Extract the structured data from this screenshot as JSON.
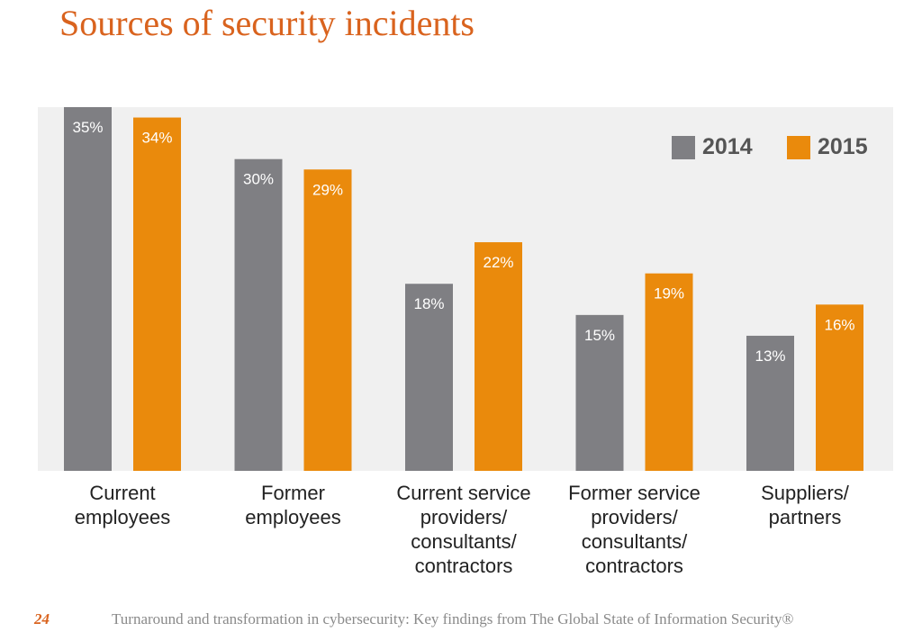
{
  "title": "Sources of security incidents",
  "chart_data": {
    "type": "bar",
    "categories": [
      "Current\nemployees",
      "Former\nemployees",
      "Current service\nproviders/\nconsultants/\ncontractors",
      "Former service\nproviders/\nconsultants/\ncontractors",
      "Suppliers/\npartners"
    ],
    "series": [
      {
        "name": "2014",
        "color": "#7f7f83",
        "values": [
          35,
          30,
          18,
          15,
          13
        ],
        "labels": [
          "35%",
          "30%",
          "18%",
          "15%",
          "13%"
        ]
      },
      {
        "name": "2015",
        "color": "#ea8a0c",
        "values": [
          34,
          29,
          22,
          19,
          16
        ],
        "labels": [
          "34%",
          "29%",
          "22%",
          "19%",
          "16%"
        ]
      }
    ],
    "ylim": [
      0,
      35
    ],
    "legend_position": "top-right",
    "grid": false
  },
  "footer": {
    "page_number": "24",
    "text": "Turnaround and transformation in cybersecurity: Key findings from The Global State of Information Security®"
  }
}
